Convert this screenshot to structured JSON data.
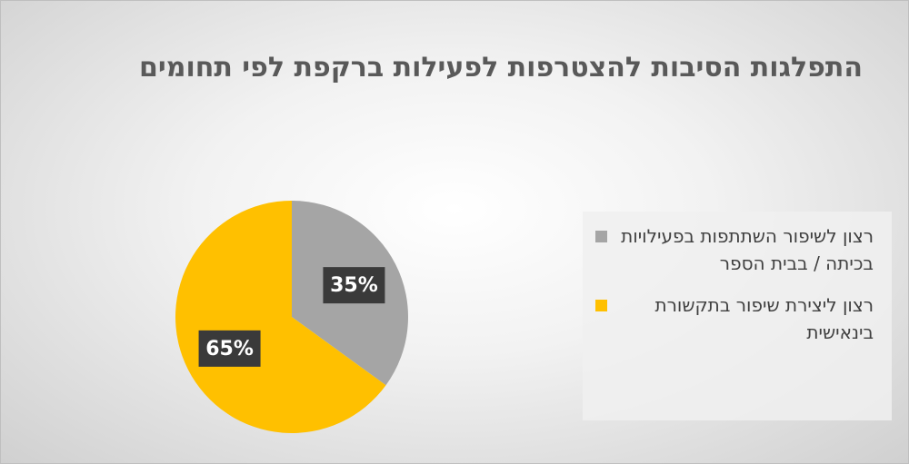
{
  "chart_data": {
    "type": "pie",
    "title": "התפלגות הסיבות להצטרפות לפעילות ברקפת לפי תחומים",
    "categories": [
      "רצון לשיפור השתתפות בפעילויות בכיתה / בבית הספר",
      "רצון ליצירת שיפור בתקשורת בינאישית"
    ],
    "values": [
      35,
      65
    ],
    "value_labels": [
      "35%",
      "65%"
    ],
    "colors": [
      "#a5a5a5",
      "#ffc000"
    ],
    "legend": "right"
  }
}
